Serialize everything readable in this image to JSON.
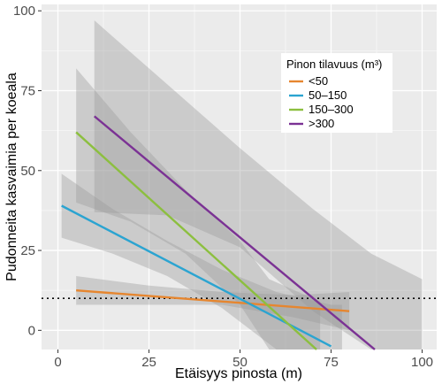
{
  "chart_data": {
    "type": "line",
    "xlabel": "Etäisyys pinosta (m)",
    "ylabel": "Pudonneita kasvaimia per koeala",
    "xlim": [
      -4.5,
      104
    ],
    "ylim": [
      -6,
      102
    ],
    "xticks": [
      "0",
      "25",
      "50",
      "75",
      "100"
    ],
    "yticks": [
      "0",
      "25",
      "50",
      "75",
      "100"
    ],
    "reference_line": {
      "y": 10,
      "style": "dotted"
    },
    "legend": {
      "title": "Pinon tilavuus (m³)",
      "position": "top-right (inside plot)"
    },
    "series": [
      {
        "name": "<50",
        "color": "#E6862F",
        "line": [
          [
            5,
            12.5
          ],
          [
            80,
            6
          ]
        ],
        "band": {
          "x": [
            5,
            25,
            45,
            65,
            80
          ],
          "upper": [
            17,
            14,
            12,
            11,
            12
          ],
          "lower": [
            8,
            8,
            8,
            4,
            0
          ]
        }
      },
      {
        "name": "50–150",
        "color": "#2BA4D1",
        "line": [
          [
            1,
            39
          ],
          [
            75,
            -5
          ]
        ],
        "band": {
          "x": [
            1,
            15,
            30,
            45,
            60,
            75,
            78
          ],
          "upper": [
            49,
            38,
            28,
            19,
            12,
            8,
            8
          ],
          "lower": [
            29,
            24,
            17,
            7,
            -6,
            -6,
            -6
          ]
        }
      },
      {
        "name": "150–300",
        "color": "#8CBF3F",
        "line": [
          [
            5,
            62
          ],
          [
            71,
            -6
          ]
        ],
        "band": {
          "x": [
            5,
            20,
            35,
            50,
            58,
            72
          ],
          "upper": [
            82,
            62,
            44,
            28,
            16,
            9
          ],
          "lower": [
            40,
            34,
            24,
            8,
            -6,
            -6
          ]
        }
      },
      {
        "name": ">300",
        "color": "#7B3294",
        "line": [
          [
            10,
            67
          ],
          [
            87,
            -6
          ]
        ],
        "band": {
          "x": [
            10,
            30,
            50,
            70,
            86,
            100
          ],
          "upper": [
            97,
            77,
            57,
            38,
            24,
            16
          ],
          "lower": [
            37,
            36,
            26,
            6,
            -6,
            -6
          ]
        }
      }
    ]
  }
}
